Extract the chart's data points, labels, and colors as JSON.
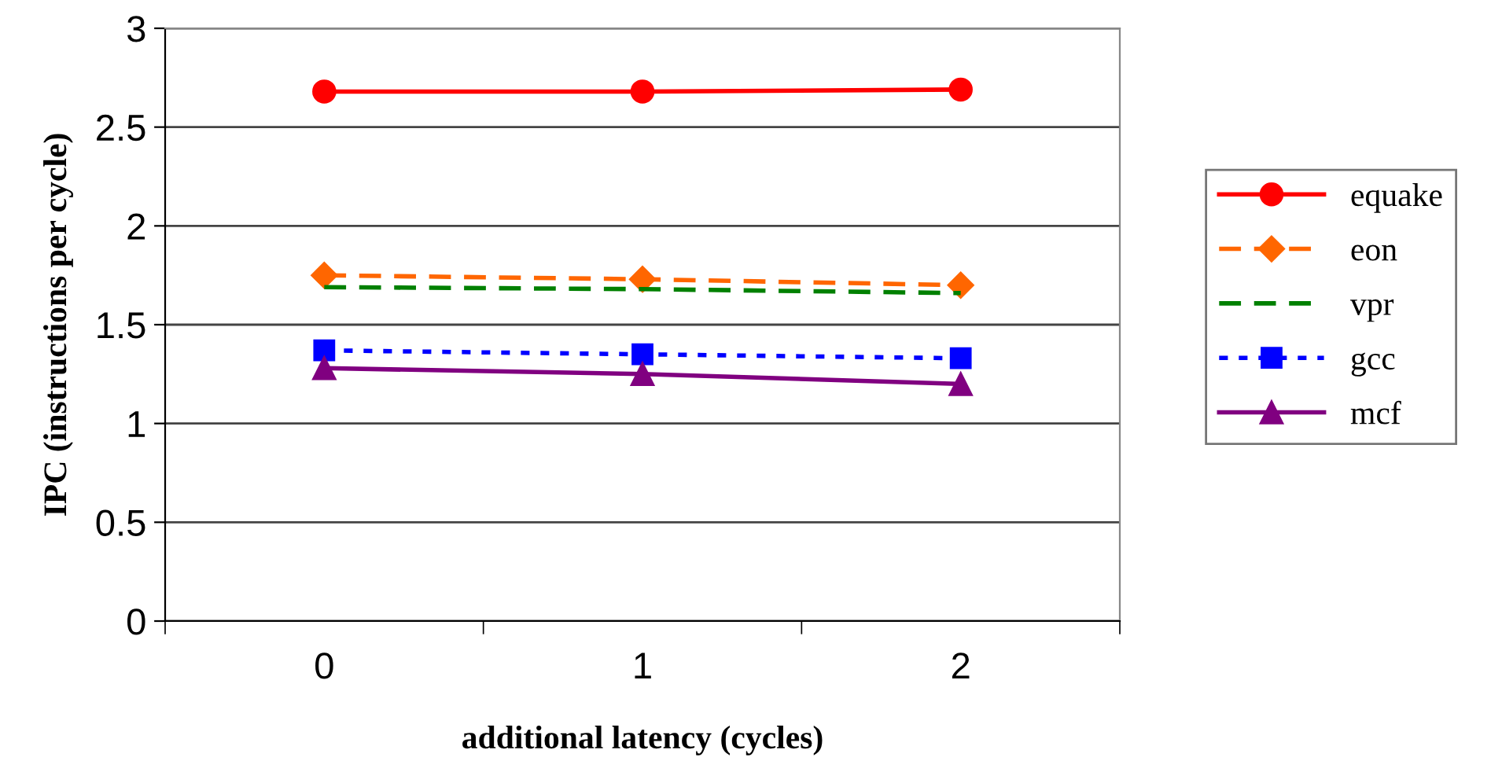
{
  "chart_data": {
    "type": "line",
    "xlabel": "additional latency (cycles)",
    "ylabel": "IPC (instructions per cycle)",
    "categories": [
      "0",
      "1",
      "2"
    ],
    "series": [
      {
        "name": "equake",
        "color": "#ff0000",
        "values": [
          2.68,
          2.68,
          2.69
        ],
        "marker": "circle",
        "line_style": "solid"
      },
      {
        "name": "eon",
        "color": "#ff6600",
        "values": [
          1.75,
          1.73,
          1.7
        ],
        "marker": "diamond",
        "line_style": "dashed"
      },
      {
        "name": "vpr",
        "color": "#008000",
        "values": [
          1.69,
          1.68,
          1.66
        ],
        "marker": "none",
        "line_style": "dashed"
      },
      {
        "name": "gcc",
        "color": "#0000ff",
        "values": [
          1.37,
          1.35,
          1.33
        ],
        "marker": "square",
        "line_style": "dotted"
      },
      {
        "name": "mcf",
        "color": "#800080",
        "values": [
          1.28,
          1.25,
          1.2
        ],
        "marker": "triangle",
        "line_style": "solid"
      }
    ],
    "ylim": [
      0,
      3
    ],
    "yticks": [
      0,
      0.5,
      1,
      1.5,
      2,
      2.5,
      3
    ],
    "grid": "y",
    "legend": "right"
  }
}
